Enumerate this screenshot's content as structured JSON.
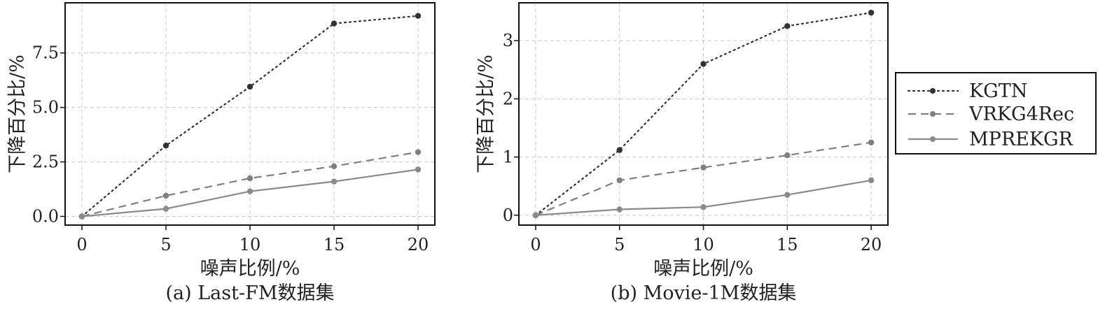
{
  "chart_data": [
    {
      "type": "line",
      "caption": "(a) Last-FM数据集",
      "xlabel": "噪声比例/%",
      "ylabel": "下降百分比/%",
      "x": [
        0,
        5,
        10,
        15,
        20
      ],
      "xlim": [
        -1,
        21
      ],
      "ylim": [
        -0.4,
        9.8
      ],
      "xticks": [
        "0",
        "5",
        "10",
        "15",
        "20"
      ],
      "yticks": [
        "0.0",
        "2.5",
        "5.0",
        "7.5"
      ],
      "ytick_values": [
        0,
        2.5,
        5.0,
        7.5
      ],
      "grid": true,
      "series": [
        {
          "name": "KGTN",
          "values": [
            0,
            3.25,
            5.95,
            8.85,
            9.2
          ]
        },
        {
          "name": "VRKG4Rec",
          "values": [
            0,
            0.95,
            1.75,
            2.3,
            2.95
          ]
        },
        {
          "name": "MPREKGR",
          "values": [
            0,
            0.35,
            1.15,
            1.6,
            2.15
          ]
        }
      ]
    },
    {
      "type": "line",
      "caption": "(b) Movie-1M数据集",
      "xlabel": "噪声比例/%",
      "ylabel": "下降百分比/%",
      "x": [
        0,
        5,
        10,
        15,
        20
      ],
      "xlim": [
        -1,
        21
      ],
      "ylim": [
        -0.17,
        3.65
      ],
      "xticks": [
        "0",
        "5",
        "10",
        "15",
        "20"
      ],
      "yticks": [
        "0",
        "1",
        "2",
        "3"
      ],
      "ytick_values": [
        0,
        1,
        2,
        3
      ],
      "grid": true,
      "series": [
        {
          "name": "KGTN",
          "values": [
            0,
            1.12,
            2.6,
            3.25,
            3.48
          ]
        },
        {
          "name": "VRKG4Rec",
          "values": [
            0,
            0.6,
            0.82,
            1.03,
            1.25
          ]
        },
        {
          "name": "MPREKGR",
          "values": [
            0,
            0.1,
            0.14,
            0.35,
            0.6
          ]
        }
      ]
    }
  ],
  "legend": {
    "placement": "right",
    "entries": [
      {
        "name": "KGTN",
        "style": "dotted",
        "color": "#333333"
      },
      {
        "name": "VRKG4Rec",
        "style": "dashed",
        "color": "#7f7f7f"
      },
      {
        "name": "MPREKGR",
        "style": "solid",
        "color": "#8a8a8a"
      }
    ]
  }
}
